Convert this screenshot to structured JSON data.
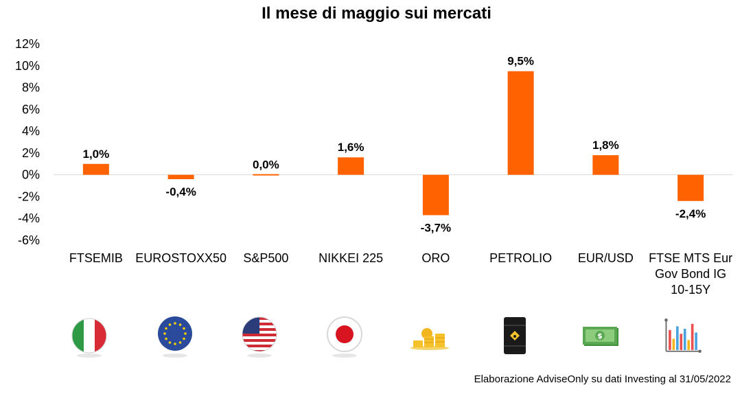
{
  "chart_data": {
    "type": "bar",
    "title": "Il mese di maggio sui mercati",
    "categories": [
      "FTSEMIB",
      "EUROSTOXX50",
      "S&P500",
      "NIKKEI 225",
      "ORO",
      "PETROLIO",
      "EUR/USD",
      "FTSE MTS Eur Gov Bond IG 10-15Y"
    ],
    "category_lines": [
      [
        "FTSEMIB"
      ],
      [
        "EUROSTOXX50"
      ],
      [
        "S&P500"
      ],
      [
        "NIKKEI 225"
      ],
      [
        "ORO"
      ],
      [
        "PETROLIO"
      ],
      [
        "EUR/USD"
      ],
      [
        "FTSE MTS Eur",
        "Gov Bond IG",
        "10-15Y"
      ]
    ],
    "values": [
      1.0,
      -0.4,
      0.0,
      1.6,
      -3.7,
      9.5,
      1.8,
      -2.4
    ],
    "data_labels": [
      "1,0%",
      "-0,4%",
      "0,0%",
      "1,6%",
      "-3,7%",
      "9,5%",
      "1,8%",
      "-2,4%"
    ],
    "ylim": [
      -6,
      12
    ],
    "yticks": [
      12,
      10,
      8,
      6,
      4,
      2,
      0,
      -2,
      -4,
      -6
    ],
    "ytick_labels": [
      "12%",
      "10%",
      "8%",
      "6%",
      "4%",
      "2%",
      "0%",
      "-2%",
      "-4%",
      "-6%"
    ],
    "xlabel": "",
    "ylabel": "",
    "grid": false,
    "bar_color": "#ff6200"
  },
  "icons": [
    "italy-flag-icon",
    "eu-flag-icon",
    "usa-flag-icon",
    "japan-flag-icon",
    "gold-coins-icon",
    "oil-barrel-icon",
    "dollar-bills-icon",
    "bar-chart-icon"
  ],
  "source": "Elaborazione AdviseOnly su dati Investing al 31/05/2022"
}
